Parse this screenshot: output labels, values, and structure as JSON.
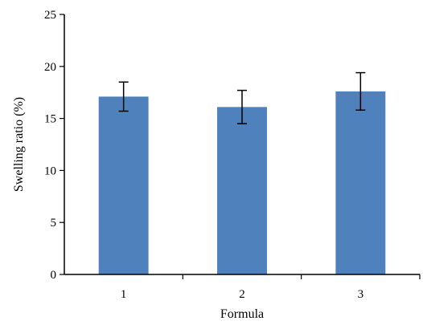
{
  "chart_data": {
    "type": "bar",
    "title": "",
    "xlabel": "Formula",
    "ylabel": "Swelling ratio (%)",
    "categories": [
      "1",
      "2",
      "3"
    ],
    "values": [
      17.1,
      16.1,
      17.6
    ],
    "error": [
      1.4,
      1.6,
      1.8
    ],
    "ylim": [
      0,
      25
    ],
    "yticks": [
      "0",
      "5",
      "10",
      "15",
      "20",
      "25"
    ],
    "grid": false,
    "legend": "none",
    "bar_color": "#4f81bd",
    "error_bar_color": "#000000"
  }
}
